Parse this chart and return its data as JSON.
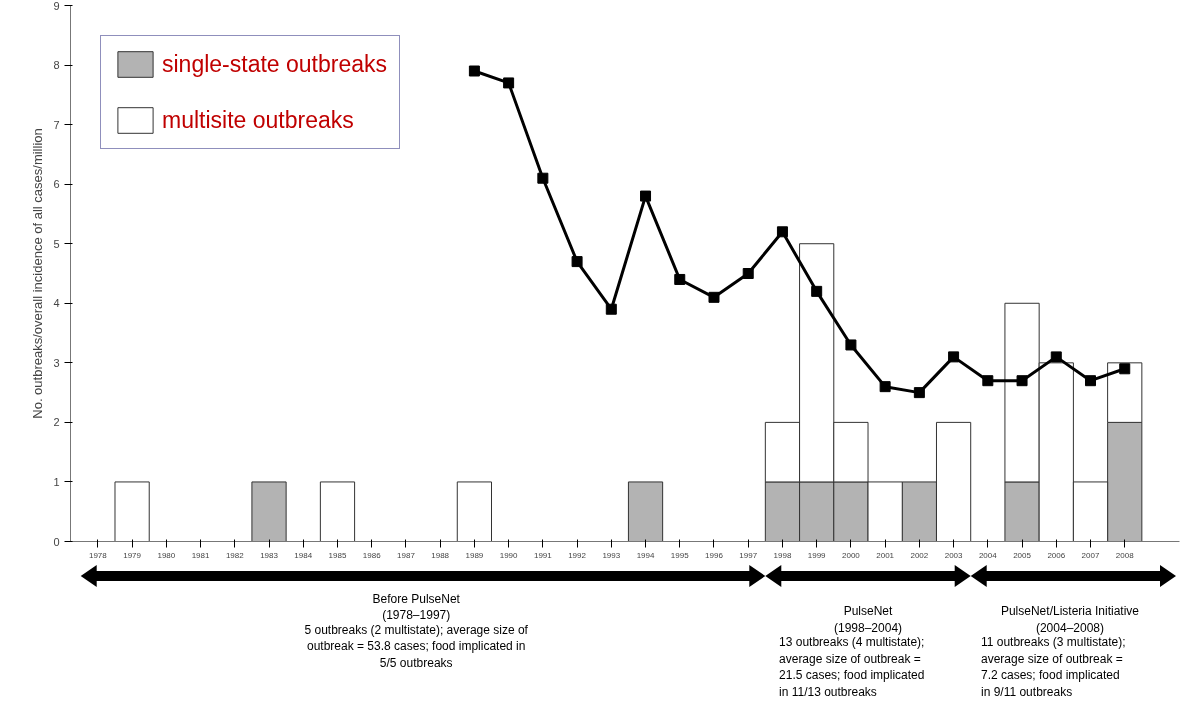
{
  "chart_data": {
    "type": "bar",
    "stacked": true,
    "ylabel": "No. outbreaks/overall incidence of all cases/million",
    "categories": [
      "1978",
      "1979",
      "1980",
      "1981",
      "1982",
      "1983",
      "1984",
      "1985",
      "1986",
      "1987",
      "1988",
      "1989",
      "1990",
      "1991",
      "1992",
      "1993",
      "1994",
      "1995",
      "1996",
      "1997",
      "1998",
      "1999",
      "2000",
      "2001",
      "2002",
      "2003",
      "2004",
      "2005",
      "2006",
      "2007",
      "2008"
    ],
    "series": [
      {
        "name": "single-state outbreaks",
        "color": "#b3b3b3",
        "values": [
          0,
          0,
          0,
          0,
          0,
          1,
          0,
          0,
          0,
          0,
          0,
          0,
          0,
          0,
          0,
          0,
          1,
          0,
          0,
          0,
          1,
          1,
          1,
          0,
          1,
          0,
          0,
          1,
          0,
          0,
          2
        ]
      },
      {
        "name": "multisite outbreaks",
        "color": "#ffffff",
        "values": [
          0,
          1,
          0,
          0,
          0,
          0,
          0,
          1,
          0,
          0,
          0,
          1,
          0,
          0,
          0,
          0,
          0,
          0,
          0,
          0,
          1,
          4,
          1,
          1,
          0,
          2,
          0,
          3,
          3,
          1,
          1
        ]
      },
      {
        "type": "line",
        "color": "#000000",
        "marker": "square",
        "values": [
          null,
          null,
          null,
          null,
          null,
          null,
          null,
          null,
          null,
          null,
          null,
          7.9,
          7.7,
          6.1,
          4.7,
          3.9,
          5.8,
          4.4,
          4.1,
          4.5,
          5.2,
          4.2,
          3.3,
          2.6,
          2.5,
          3.1,
          2.7,
          2.7,
          3.1,
          2.7,
          2.9
        ]
      }
    ],
    "ylim": [
      0,
      9
    ],
    "yticks": [
      0,
      1,
      2,
      3,
      4,
      5,
      6,
      7,
      8,
      9
    ],
    "grid": false,
    "legend": "top left",
    "annotations": [
      "Before PulseNet\n(1978–1997)\n5 outbreaks (2 multistate); average size of\noutbreak = 53.8 cases; food implicated in\n5/5 outbreaks",
      "PulseNet\n(1998–2004)\n13 outbreaks (4 multistate);\naverage size of outbreak =\n21.5 cases; food implicated\nin 11/13 outbreaks",
      "PulseNet/Listeria Initiative\n(2004–2008)\n11 outbreaks (3 multistate);\naverage size of outbreak =\n7.2 cases; food implicated\nin 9/11 outbreaks"
    ]
  }
}
